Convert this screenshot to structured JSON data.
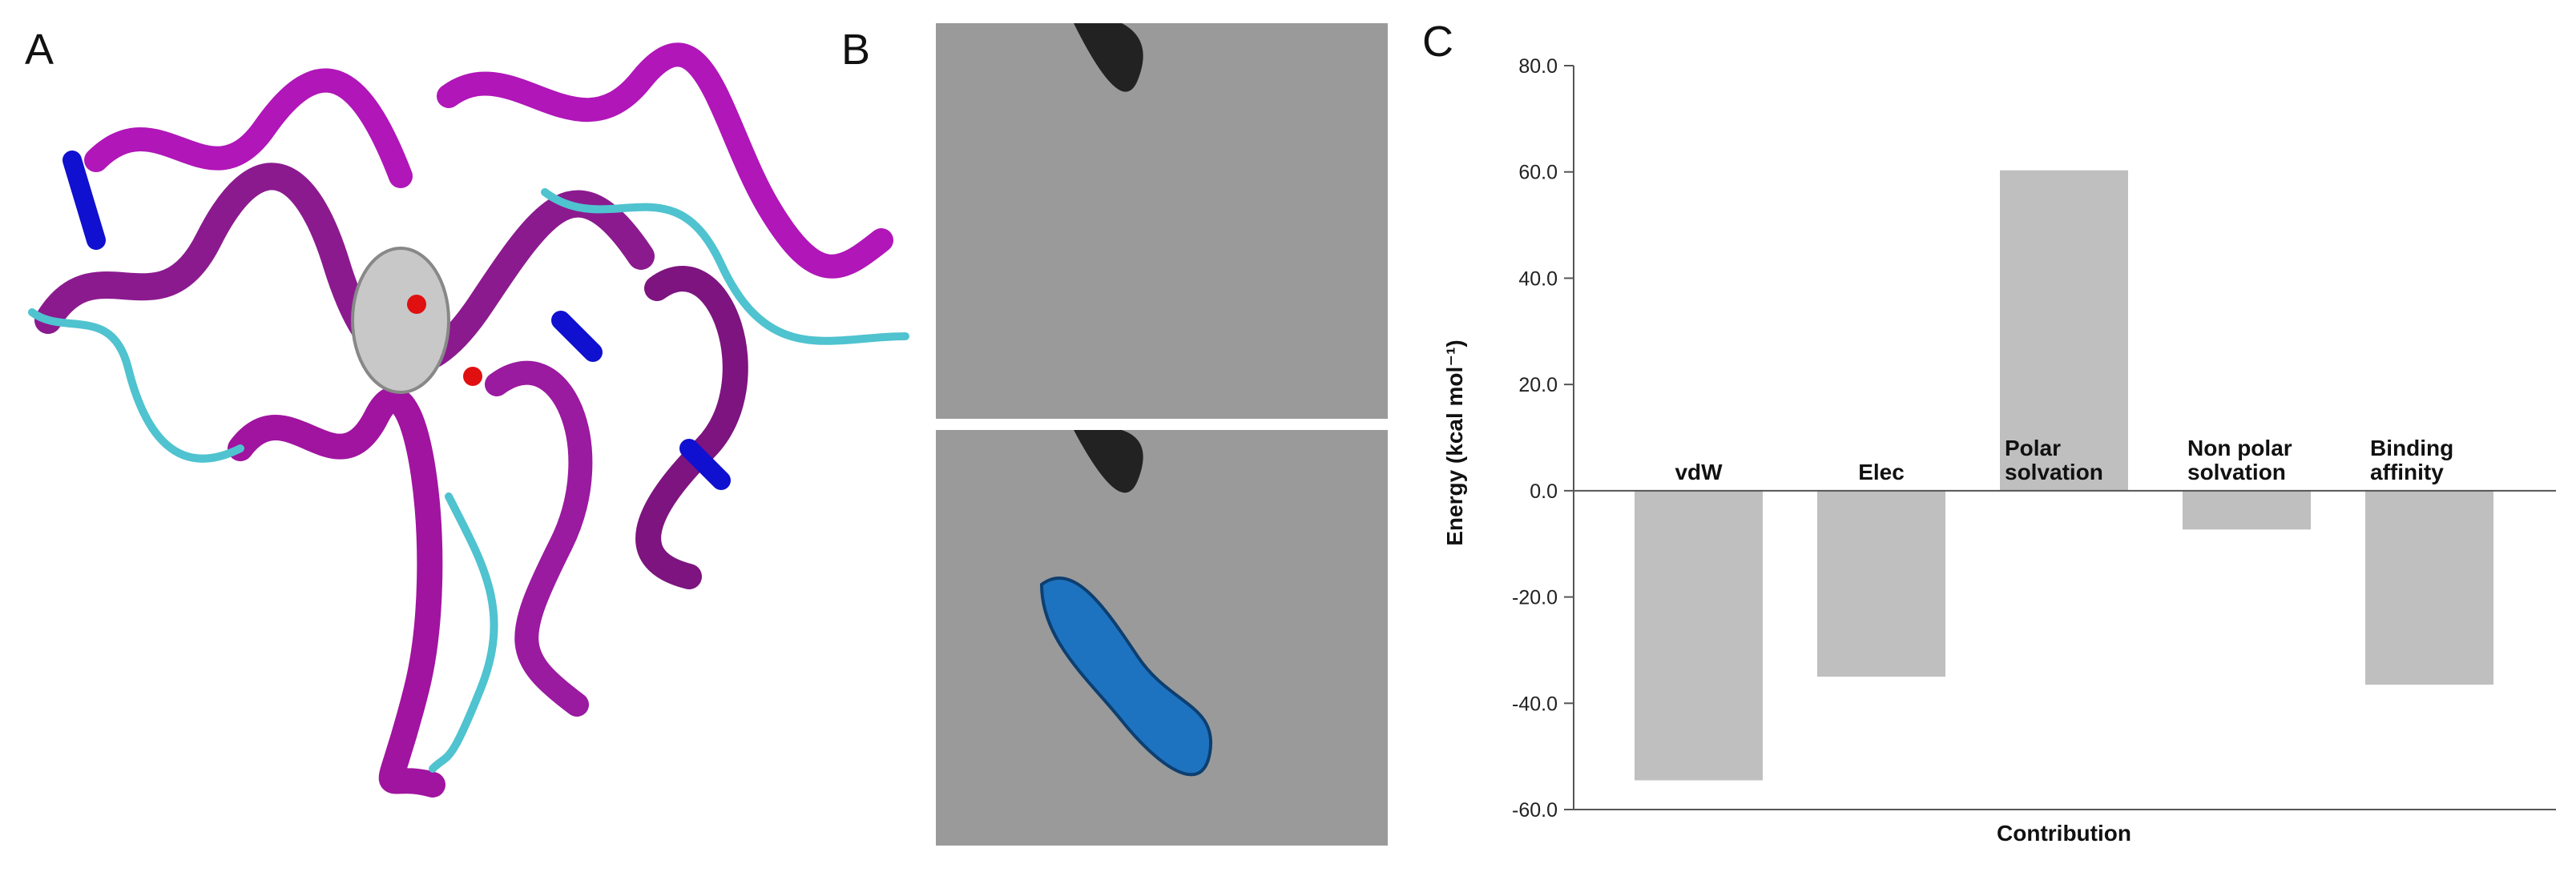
{
  "panels": [
    "A",
    "B",
    "C"
  ],
  "chart_data": {
    "type": "bar",
    "y_label": "Energy (kcal mol⁻¹)",
    "x_label": "Contribution",
    "categories": [
      [
        "vdW"
      ],
      [
        "Elec"
      ],
      [
        "Polar",
        "solvation"
      ],
      [
        "Non polar",
        "solvation"
      ],
      [
        "Binding",
        "affinity"
      ]
    ],
    "values": [
      -54.5,
      -35.0,
      60.3,
      -7.3,
      -36.5
    ],
    "color": "#bfbfbf",
    "ylim": [
      -60,
      80
    ],
    "yticks": [
      {
        "value": -60,
        "label": "-60.0"
      },
      {
        "value": -40,
        "label": "-40.0"
      },
      {
        "value": -20,
        "label": "-20.0"
      },
      {
        "value": 0,
        "label": "0.0"
      },
      {
        "value": 20,
        "label": "20.0"
      },
      {
        "value": 40,
        "label": "40.0"
      },
      {
        "value": 60,
        "label": "60.0"
      },
      {
        "value": 80,
        "label": "80.0"
      }
    ]
  }
}
